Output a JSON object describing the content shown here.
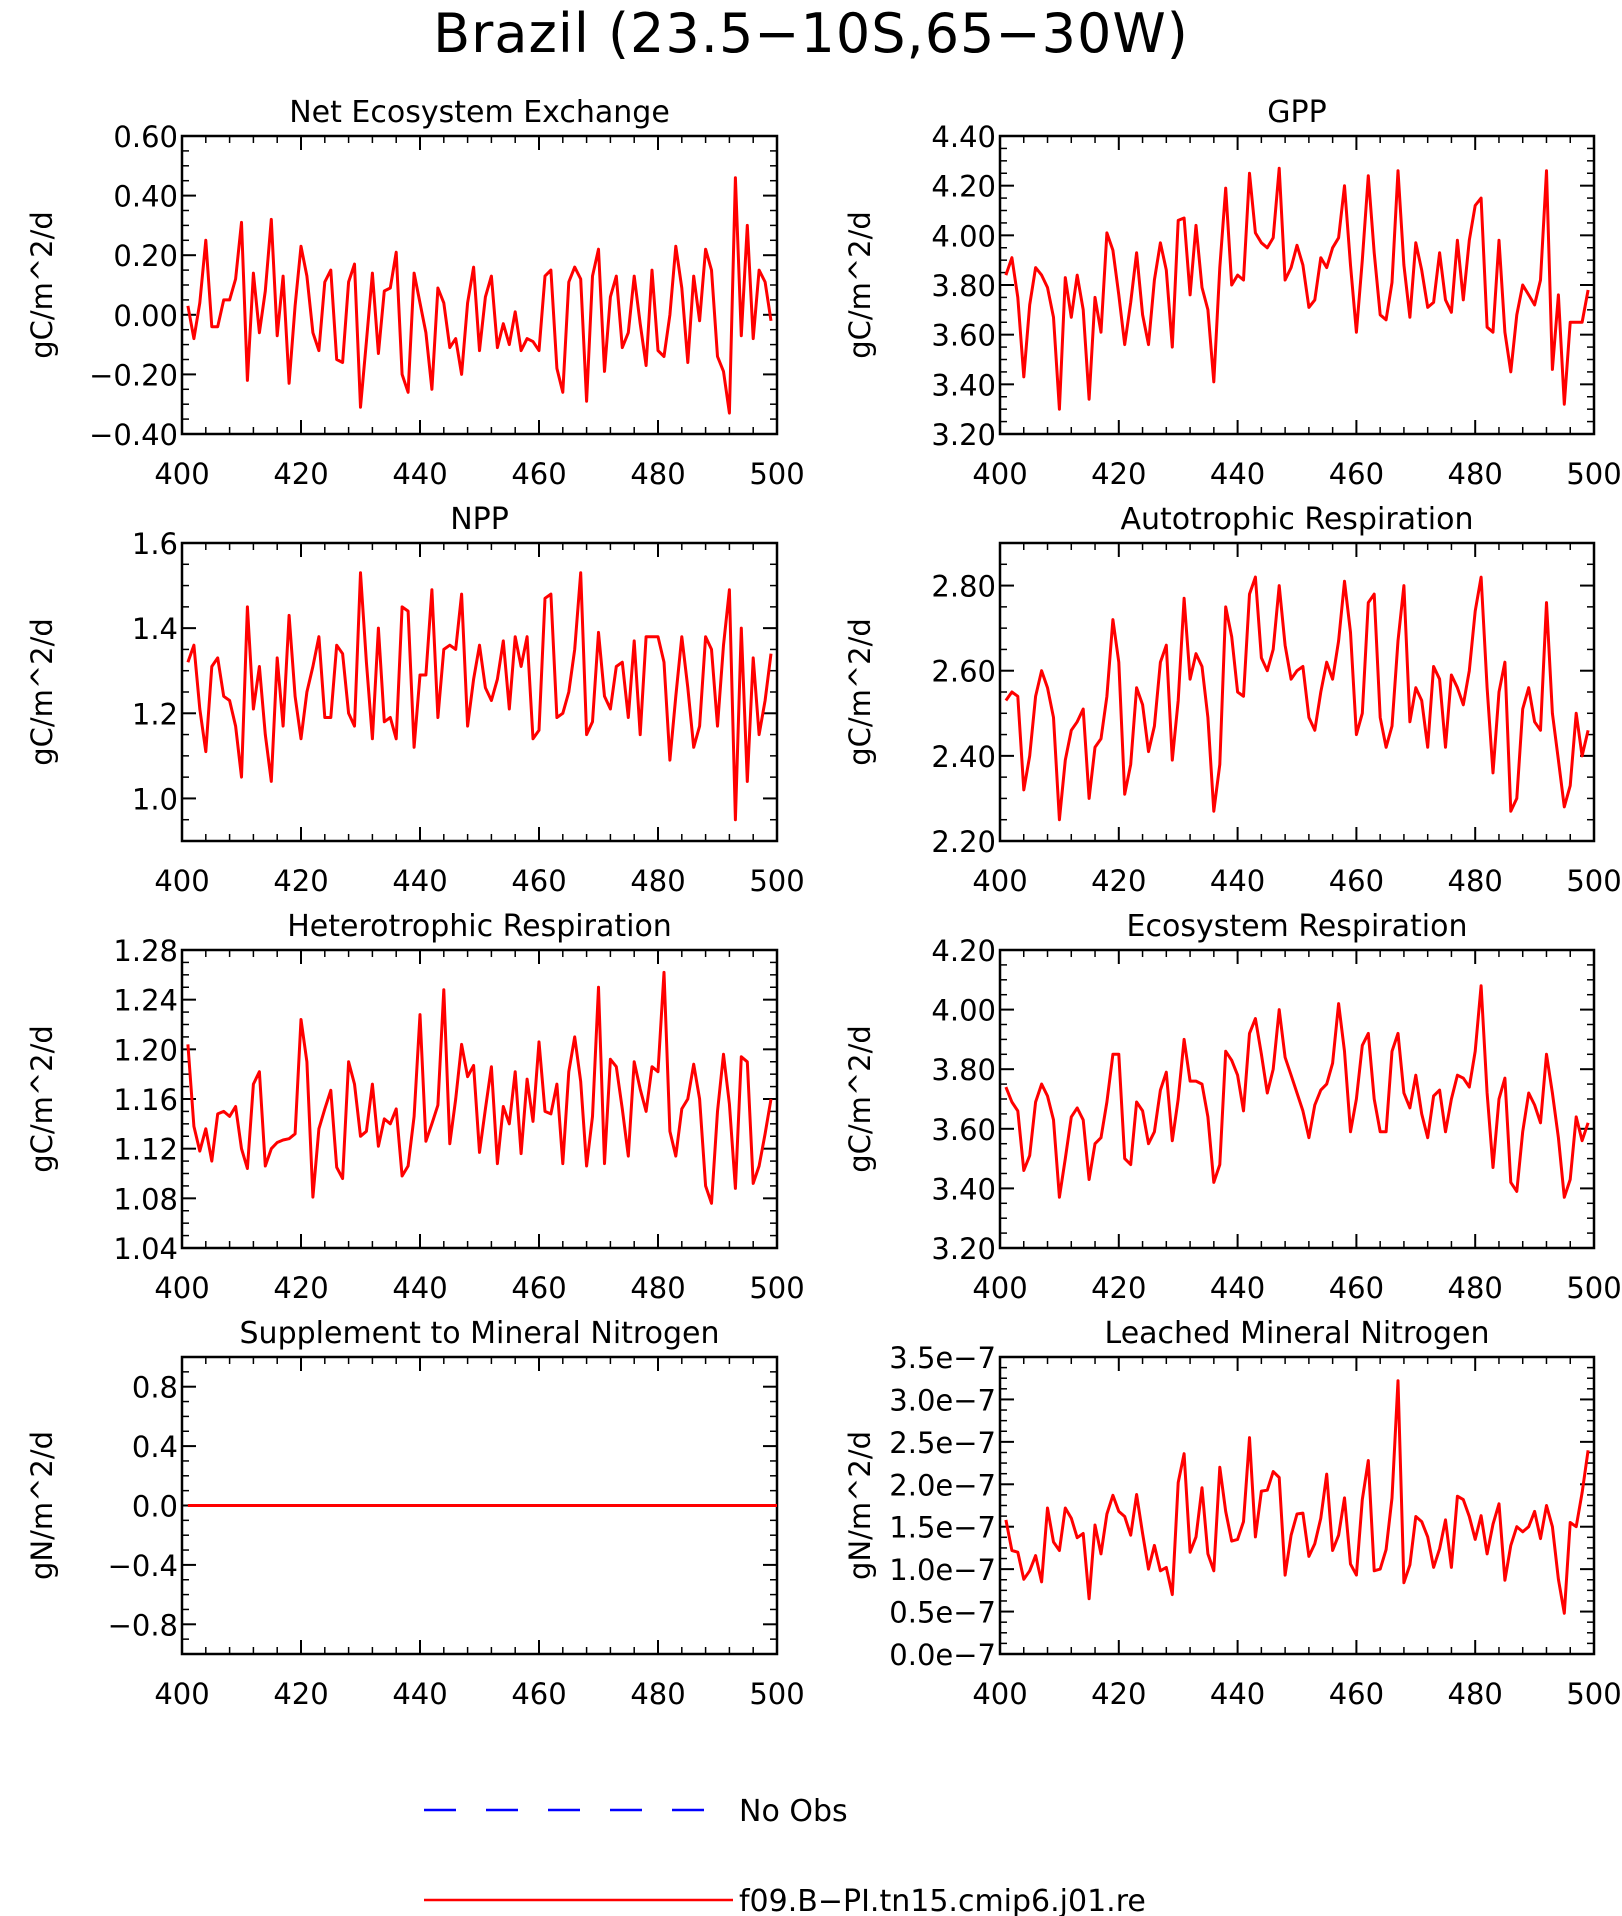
{
  "title": "Brazil (23.5−10S,65−30W)",
  "colors": {
    "model": "#ff0000",
    "obs": "#0000ff",
    "axis": "#000000"
  },
  "legend": [
    {
      "label": "No Obs",
      "style": "dashed",
      "color": "#0000ff"
    },
    {
      "label": "f09.B−PI.tn15.cmip6.j01.re",
      "style": "solid",
      "color": "#ff0000"
    }
  ],
  "chart_data": [
    {
      "type": "line",
      "title": "Net Ecosystem Exchange",
      "ylabel": "gC/m^2/d",
      "xlim": [
        400,
        500
      ],
      "xticks": [
        "400",
        "420",
        "440",
        "460",
        "480",
        "500"
      ],
      "ylim": [
        -0.4,
        0.6
      ],
      "yticks": [
        "−0.40",
        "−0.20",
        "0.00",
        "0.20",
        "0.40",
        "0.60"
      ],
      "x_start": 401,
      "series": [
        {
          "values": [
            0.03,
            -0.08,
            0.04,
            0.25,
            -0.04,
            -0.04,
            0.05,
            0.05,
            0.12,
            0.31,
            -0.22,
            0.14,
            -0.06,
            0.08,
            0.32,
            -0.07,
            0.13,
            -0.23,
            0.03,
            0.23,
            0.13,
            -0.06,
            -0.12,
            0.11,
            0.15,
            -0.15,
            -0.16,
            0.11,
            0.17,
            -0.31,
            -0.09,
            0.14,
            -0.13,
            0.08,
            0.09,
            0.21,
            -0.2,
            -0.26,
            0.14,
            0.04,
            -0.06,
            -0.25,
            0.09,
            0.04,
            -0.11,
            -0.08,
            -0.2,
            0.04,
            0.16,
            -0.12,
            0.06,
            0.13,
            -0.11,
            -0.03,
            -0.1,
            0.01,
            -0.12,
            -0.08,
            -0.09,
            -0.12,
            0.13,
            0.15,
            -0.18,
            -0.26,
            0.11,
            0.16,
            0.12,
            -0.29,
            0.13,
            0.22,
            -0.19,
            0.06,
            0.13,
            -0.11,
            -0.06,
            0.13,
            -0.03,
            -0.17,
            0.15,
            -0.12,
            -0.14,
            0.0,
            0.23,
            0.09,
            -0.16,
            0.13,
            -0.02,
            0.22,
            0.15,
            -0.14,
            -0.19,
            -0.33,
            0.46,
            -0.07,
            0.3,
            -0.08,
            0.15,
            0.11,
            -0.02
          ]
        }
      ]
    },
    {
      "type": "line",
      "title": "GPP",
      "ylabel": "gC/m^2/d",
      "xlim": [
        400,
        500
      ],
      "xticks": [
        "400",
        "420",
        "440",
        "460",
        "480",
        "500"
      ],
      "ylim": [
        3.2,
        4.4
      ],
      "yticks": [
        "3.20",
        "3.40",
        "3.60",
        "3.80",
        "4.00",
        "4.20",
        "4.40"
      ],
      "x_start": 401,
      "series": [
        {
          "values": [
            3.84,
            3.91,
            3.75,
            3.43,
            3.72,
            3.87,
            3.84,
            3.79,
            3.67,
            3.3,
            3.83,
            3.67,
            3.84,
            3.7,
            3.34,
            3.75,
            3.61,
            4.01,
            3.94,
            3.76,
            3.56,
            3.73,
            3.93,
            3.68,
            3.56,
            3.82,
            3.97,
            3.86,
            3.55,
            4.06,
            4.07,
            3.76,
            4.04,
            3.79,
            3.7,
            3.41,
            3.87,
            4.19,
            3.8,
            3.84,
            3.82,
            4.25,
            4.01,
            3.97,
            3.95,
            3.99,
            4.27,
            3.82,
            3.87,
            3.96,
            3.88,
            3.71,
            3.74,
            3.91,
            3.87,
            3.95,
            3.99,
            4.2,
            3.88,
            3.61,
            3.9,
            4.24,
            3.93,
            3.68,
            3.66,
            3.81,
            4.26,
            3.88,
            3.67,
            3.97,
            3.86,
            3.71,
            3.73,
            3.93,
            3.74,
            3.69,
            3.98,
            3.74,
            3.98,
            4.12,
            4.15,
            3.63,
            3.61,
            3.98,
            3.61,
            3.45,
            3.68,
            3.8,
            3.76,
            3.72,
            3.82,
            4.26,
            3.46,
            3.76,
            3.32,
            3.65,
            3.65,
            3.65,
            3.78
          ]
        }
      ]
    },
    {
      "type": "line",
      "title": "NPP",
      "ylabel": "gC/m^2/d",
      "xlim": [
        400,
        500
      ],
      "xticks": [
        "400",
        "420",
        "440",
        "460",
        "480",
        "500"
      ],
      "ylim": [
        0.9,
        1.6
      ],
      "yticks": [
        "1.0",
        "1.2",
        "1.4",
        "1.6"
      ],
      "x_start": 401,
      "series": [
        {
          "values": [
            1.32,
            1.36,
            1.21,
            1.11,
            1.31,
            1.33,
            1.24,
            1.23,
            1.17,
            1.05,
            1.45,
            1.21,
            1.31,
            1.15,
            1.04,
            1.33,
            1.17,
            1.43,
            1.24,
            1.14,
            1.25,
            1.31,
            1.38,
            1.19,
            1.19,
            1.36,
            1.34,
            1.2,
            1.17,
            1.53,
            1.32,
            1.14,
            1.4,
            1.18,
            1.19,
            1.14,
            1.45,
            1.44,
            1.12,
            1.29,
            1.29,
            1.49,
            1.19,
            1.35,
            1.36,
            1.35,
            1.48,
            1.17,
            1.28,
            1.36,
            1.26,
            1.23,
            1.28,
            1.37,
            1.21,
            1.38,
            1.31,
            1.38,
            1.14,
            1.16,
            1.47,
            1.48,
            1.19,
            1.2,
            1.25,
            1.35,
            1.53,
            1.15,
            1.18,
            1.39,
            1.24,
            1.21,
            1.31,
            1.32,
            1.19,
            1.37,
            1.15,
            1.38,
            1.38,
            1.38,
            1.32,
            1.09,
            1.24,
            1.38,
            1.26,
            1.12,
            1.17,
            1.38,
            1.35,
            1.17,
            1.36,
            1.49,
            0.95,
            1.4,
            1.04,
            1.33,
            1.15,
            1.23,
            1.34
          ]
        }
      ]
    },
    {
      "type": "line",
      "title": "Autotrophic Respiration",
      "ylabel": "gC/m^2/d",
      "xlim": [
        400,
        500
      ],
      "xticks": [
        "400",
        "420",
        "440",
        "460",
        "480",
        "500"
      ],
      "ylim": [
        2.2,
        2.9
      ],
      "yticks": [
        "2.20",
        "2.40",
        "2.60",
        "2.80"
      ],
      "x_start": 401,
      "series": [
        {
          "values": [
            2.53,
            2.55,
            2.54,
            2.32,
            2.4,
            2.54,
            2.6,
            2.56,
            2.49,
            2.25,
            2.39,
            2.46,
            2.48,
            2.51,
            2.3,
            2.42,
            2.44,
            2.54,
            2.72,
            2.62,
            2.31,
            2.38,
            2.56,
            2.52,
            2.41,
            2.47,
            2.62,
            2.66,
            2.39,
            2.53,
            2.77,
            2.58,
            2.64,
            2.61,
            2.49,
            2.27,
            2.38,
            2.75,
            2.68,
            2.55,
            2.54,
            2.78,
            2.82,
            2.63,
            2.6,
            2.65,
            2.8,
            2.66,
            2.58,
            2.6,
            2.61,
            2.49,
            2.46,
            2.55,
            2.62,
            2.58,
            2.67,
            2.81,
            2.69,
            2.45,
            2.5,
            2.76,
            2.78,
            2.49,
            2.42,
            2.47,
            2.67,
            2.8,
            2.48,
            2.56,
            2.53,
            2.42,
            2.61,
            2.58,
            2.42,
            2.59,
            2.56,
            2.52,
            2.6,
            2.74,
            2.82,
            2.56,
            2.36,
            2.55,
            2.62,
            2.27,
            2.3,
            2.51,
            2.56,
            2.48,
            2.46,
            2.76,
            2.5,
            2.39,
            2.28,
            2.33,
            2.5,
            2.4,
            2.46
          ]
        }
      ]
    },
    {
      "type": "line",
      "title": "Heterotrophic Respiration",
      "ylabel": "gC/m^2/d",
      "xlim": [
        400,
        500
      ],
      "xticks": [
        "400",
        "420",
        "440",
        "460",
        "480",
        "500"
      ],
      "ylim": [
        1.04,
        1.28
      ],
      "yticks": [
        "1.04",
        "1.08",
        "1.12",
        "1.16",
        "1.20",
        "1.24",
        "1.28"
      ],
      "x_start": 401,
      "series": [
        {
          "values": [
            1.204,
            1.138,
            1.118,
            1.136,
            1.11,
            1.148,
            1.15,
            1.146,
            1.154,
            1.12,
            1.104,
            1.172,
            1.182,
            1.106,
            1.12,
            1.125,
            1.127,
            1.128,
            1.132,
            1.224,
            1.19,
            1.081,
            1.136,
            1.152,
            1.167,
            1.105,
            1.096,
            1.19,
            1.172,
            1.13,
            1.134,
            1.172,
            1.122,
            1.144,
            1.14,
            1.152,
            1.098,
            1.106,
            1.146,
            1.228,
            1.126,
            1.14,
            1.155,
            1.248,
            1.124,
            1.16,
            1.204,
            1.178,
            1.187,
            1.117,
            1.152,
            1.186,
            1.108,
            1.154,
            1.14,
            1.182,
            1.116,
            1.176,
            1.142,
            1.206,
            1.15,
            1.148,
            1.172,
            1.108,
            1.182,
            1.21,
            1.174,
            1.106,
            1.146,
            1.25,
            1.108,
            1.192,
            1.186,
            1.152,
            1.114,
            1.19,
            1.168,
            1.15,
            1.186,
            1.182,
            1.262,
            1.134,
            1.114,
            1.152,
            1.16,
            1.188,
            1.16,
            1.09,
            1.076,
            1.15,
            1.196,
            1.156,
            1.088,
            1.194,
            1.19,
            1.092,
            1.106,
            1.132,
            1.16
          ]
        }
      ]
    },
    {
      "type": "line",
      "title": "Ecosystem Respiration",
      "ylabel": "gC/m^2/d",
      "xlim": [
        400,
        500
      ],
      "xticks": [
        "400",
        "420",
        "440",
        "460",
        "480",
        "500"
      ],
      "ylim": [
        3.2,
        4.2
      ],
      "yticks": [
        "3.20",
        "3.40",
        "3.60",
        "3.80",
        "4.00",
        "4.20"
      ],
      "x_start": 401,
      "series": [
        {
          "values": [
            3.74,
            3.69,
            3.66,
            3.46,
            3.51,
            3.69,
            3.75,
            3.71,
            3.63,
            3.37,
            3.5,
            3.64,
            3.67,
            3.63,
            3.43,
            3.55,
            3.57,
            3.69,
            3.85,
            3.85,
            3.5,
            3.48,
            3.69,
            3.66,
            3.55,
            3.59,
            3.73,
            3.79,
            3.56,
            3.7,
            3.9,
            3.76,
            3.76,
            3.75,
            3.64,
            3.42,
            3.48,
            3.86,
            3.83,
            3.78,
            3.66,
            3.92,
            3.97,
            3.85,
            3.72,
            3.8,
            4.0,
            3.84,
            3.78,
            3.72,
            3.66,
            3.57,
            3.68,
            3.73,
            3.75,
            3.82,
            4.02,
            3.86,
            3.59,
            3.7,
            3.88,
            3.92,
            3.7,
            3.59,
            3.59,
            3.86,
            3.92,
            3.72,
            3.67,
            3.78,
            3.65,
            3.57,
            3.71,
            3.73,
            3.59,
            3.7,
            3.78,
            3.77,
            3.74,
            3.86,
            4.08,
            3.72,
            3.47,
            3.7,
            3.77,
            3.42,
            3.39,
            3.59,
            3.72,
            3.68,
            3.62,
            3.85,
            3.72,
            3.57,
            3.37,
            3.43,
            3.64,
            3.56,
            3.62
          ]
        }
      ]
    },
    {
      "type": "line",
      "title": "Supplement to Mineral Nitrogen",
      "ylabel": "gN/m^2/d",
      "xlim": [
        400,
        500
      ],
      "xticks": [
        "400",
        "420",
        "440",
        "460",
        "480",
        "500"
      ],
      "ylim": [
        -1.0,
        1.0
      ],
      "yticks": [
        "−0.8",
        "−0.4",
        "0.0",
        "0.4",
        "0.8"
      ],
      "x_start": 401,
      "series": [
        {
          "values": [
            0,
            0,
            0,
            0,
            0,
            0,
            0,
            0,
            0,
            0,
            0,
            0,
            0,
            0,
            0,
            0,
            0,
            0,
            0,
            0,
            0,
            0,
            0,
            0,
            0,
            0,
            0,
            0,
            0,
            0,
            0,
            0,
            0,
            0,
            0,
            0,
            0,
            0,
            0,
            0,
            0,
            0,
            0,
            0,
            0,
            0,
            0,
            0,
            0,
            0,
            0,
            0,
            0,
            0,
            0,
            0,
            0,
            0,
            0,
            0,
            0,
            0,
            0,
            0,
            0,
            0,
            0,
            0,
            0,
            0,
            0,
            0,
            0,
            0,
            0,
            0,
            0,
            0,
            0,
            0,
            0,
            0,
            0,
            0,
            0,
            0,
            0,
            0,
            0,
            0,
            0,
            0,
            0,
            0,
            0,
            0,
            0,
            0,
            0,
            0
          ]
        }
      ]
    },
    {
      "type": "line",
      "title": "Leached Mineral Nitrogen",
      "ylabel": "gN/m^2/d",
      "xlim": [
        400,
        500
      ],
      "xticks": [
        "400",
        "420",
        "440",
        "460",
        "480",
        "500"
      ],
      "ylim": [
        0,
        3.5e-07
      ],
      "yticks": [
        "0.0e−7",
        "0.5e−7",
        "1.0e−7",
        "1.5e−7",
        "2.0e−7",
        "2.5e−7",
        "3.0e−7",
        "3.5e−7"
      ],
      "x_start": 401,
      "series": [
        {
          "values": [
            1.58e-07,
            1.22e-07,
            1.2e-07,
            8.8e-08,
            9.8e-08,
            1.16e-07,
            8.5e-08,
            1.72e-07,
            1.32e-07,
            1.22e-07,
            1.72e-07,
            1.6e-07,
            1.37e-07,
            1.42e-07,
            6.5e-08,
            1.52e-07,
            1.18e-07,
            1.65e-07,
            1.87e-07,
            1.68e-07,
            1.62e-07,
            1.4e-07,
            1.88e-07,
            1.42e-07,
            1e-07,
            1.28e-07,
            9.8e-08,
            1.02e-07,
            7e-08,
            2.02e-07,
            2.36e-07,
            1.2e-07,
            1.38e-07,
            1.96e-07,
            1.18e-07,
            9.8e-08,
            2.2e-07,
            1.68e-07,
            1.33e-07,
            1.35e-07,
            1.56e-07,
            2.55e-07,
            1.38e-07,
            1.92e-07,
            1.93e-07,
            2.15e-07,
            2.08e-07,
            9.3e-08,
            1.4e-07,
            1.65e-07,
            1.66e-07,
            1.15e-07,
            1.3e-07,
            1.6e-07,
            2.12e-07,
            1.22e-07,
            1.4e-07,
            1.84e-07,
            1.06e-07,
            9.3e-08,
            1.82e-07,
            2.28e-07,
            9.8e-08,
            1e-07,
            1.23e-07,
            1.84e-07,
            3.22e-07,
            8.4e-08,
            1.05e-07,
            1.62e-07,
            1.56e-07,
            1.38e-07,
            1.02e-07,
            1.24e-07,
            1.58e-07,
            1.02e-07,
            1.86e-07,
            1.82e-07,
            1.62e-07,
            1.35e-07,
            1.63e-07,
            1.18e-07,
            1.53e-07,
            1.77e-07,
            8.7e-08,
            1.28e-07,
            1.5e-07,
            1.44e-07,
            1.5e-07,
            1.68e-07,
            1.36e-07,
            1.75e-07,
            1.5e-07,
            8.8e-08,
            4.8e-08,
            1.55e-07,
            1.5e-07,
            1.9e-07,
            2.4e-07
          ]
        }
      ]
    }
  ]
}
